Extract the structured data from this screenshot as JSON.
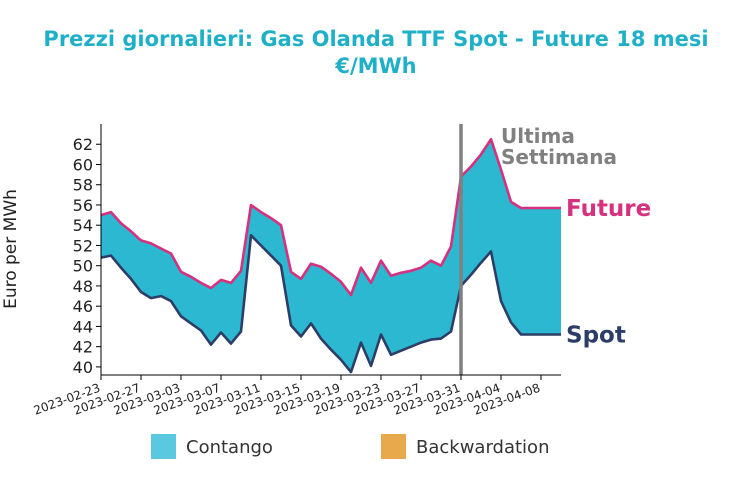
{
  "chart_data": {
    "type": "area",
    "title": "Prezzi giornalieri: Gas Olanda TTF Spot - Future 18 mesi",
    "subtitle": "€/MWh",
    "xlabel": "",
    "ylabel": "Euro per MWh",
    "ylim": [
      39.2,
      64.0
    ],
    "y_ticks": [
      40,
      42,
      44,
      46,
      48,
      50,
      52,
      54,
      56,
      58,
      60,
      62
    ],
    "x_ticks": [
      "2023-02-23",
      "2023-02-27",
      "2023-03-03",
      "2023-03-07",
      "2023-03-11",
      "2023-03-15",
      "2023-03-19",
      "2023-03-23",
      "2023-03-27",
      "2023-03-31",
      "2023-04-04",
      "2023-04-08"
    ],
    "xlim": [
      "2023-02-23",
      "2023-04-10"
    ],
    "x": [
      "2023-02-23",
      "2023-02-24",
      "2023-02-25",
      "2023-02-26",
      "2023-02-27",
      "2023-02-28",
      "2023-03-01",
      "2023-03-02",
      "2023-03-03",
      "2023-03-04",
      "2023-03-05",
      "2023-03-06",
      "2023-03-07",
      "2023-03-08",
      "2023-03-09",
      "2023-03-10",
      "2023-03-11",
      "2023-03-12",
      "2023-03-13",
      "2023-03-14",
      "2023-03-15",
      "2023-03-16",
      "2023-03-17",
      "2023-03-18",
      "2023-03-19",
      "2023-03-20",
      "2023-03-21",
      "2023-03-22",
      "2023-03-23",
      "2023-03-24",
      "2023-03-25",
      "2023-03-26",
      "2023-03-27",
      "2023-03-28",
      "2023-03-29",
      "2023-03-30",
      "2023-03-31",
      "2023-04-01",
      "2023-04-02",
      "2023-04-03",
      "2023-04-04",
      "2023-04-05",
      "2023-04-06",
      "2023-04-07",
      "2023-04-08",
      "2023-04-09",
      "2023-04-10"
    ],
    "series": [
      {
        "name": "Future",
        "color": "#d6317e",
        "values": [
          55.0,
          55.3,
          54.2,
          53.4,
          52.5,
          52.2,
          51.7,
          51.2,
          49.4,
          48.9,
          48.3,
          47.8,
          48.6,
          48.3,
          49.5,
          56.0,
          55.3,
          54.7,
          54.0,
          49.4,
          48.7,
          50.2,
          49.9,
          49.2,
          48.4,
          47.1,
          49.8,
          48.3,
          50.5,
          49.0,
          49.3,
          49.5,
          49.8,
          50.5,
          50.0,
          51.9,
          58.8,
          59.8,
          61.0,
          62.5,
          59.5,
          56.3,
          55.7,
          55.7,
          55.7,
          55.7,
          55.7
        ]
      },
      {
        "name": "Spot",
        "color": "#2c3e67",
        "values": [
          50.8,
          51.0,
          49.8,
          48.7,
          47.4,
          46.8,
          47.0,
          46.5,
          45.0,
          44.3,
          43.6,
          42.2,
          43.4,
          42.3,
          43.5,
          53.0,
          52.0,
          51.0,
          50.0,
          44.1,
          43.0,
          44.3,
          42.8,
          41.7,
          40.7,
          39.5,
          42.4,
          40.1,
          43.2,
          41.2,
          41.6,
          42.0,
          42.4,
          42.7,
          42.8,
          43.5,
          48.0,
          49.1,
          50.3,
          51.4,
          46.5,
          44.4,
          43.2,
          43.2,
          43.2,
          43.2,
          43.2
        ]
      }
    ],
    "annotations": [
      {
        "text": "Ultima",
        "x": "2023-03-31"
      },
      {
        "text": "Settimana",
        "x": "2023-03-31"
      }
    ],
    "vline": {
      "x": "2023-03-31",
      "color": "#808080"
    },
    "series_labels": [
      {
        "text": "Future",
        "color": "#d6317e"
      },
      {
        "text": "Spot",
        "color": "#2c3e67"
      }
    ],
    "legend": {
      "placement": "bottom",
      "entries": [
        {
          "label": "Contango",
          "color": "#5ac8df"
        },
        {
          "label": "Backwardation",
          "color": "#e8a84c"
        }
      ]
    },
    "fill_color": "#2bb8d0",
    "grid": false
  }
}
